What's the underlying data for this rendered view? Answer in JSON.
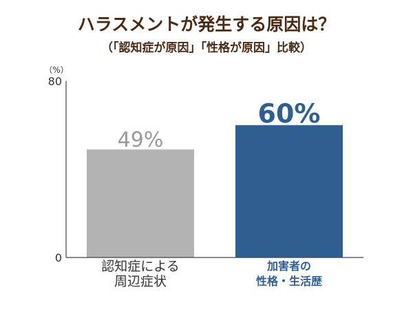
{
  "chart_data": {
    "type": "bar",
    "title": "ハラスメントが発生する原因は？",
    "subtitle": "（「認知症が原因」「性格が原因」比較）",
    "unit_label": "（%）",
    "ylim": [
      0,
      80
    ],
    "yticks": [
      0,
      80
    ],
    "categories": [
      [
        "認知症による",
        "周辺症状"
      ],
      [
        "加害者の",
        "性格・生活歴"
      ]
    ],
    "values": [
      49,
      60
    ],
    "value_labels": [
      "49%",
      "60%"
    ],
    "bar_colors": [
      "#b3b3b3",
      "#2f5f91"
    ],
    "value_label_colors": [
      "#9a9a9a",
      "#2f5f91"
    ],
    "category_label_colors": [
      "#333333",
      "#2f5f91"
    ],
    "emphasis": [
      false,
      true
    ],
    "grid": false,
    "legend": "none"
  }
}
